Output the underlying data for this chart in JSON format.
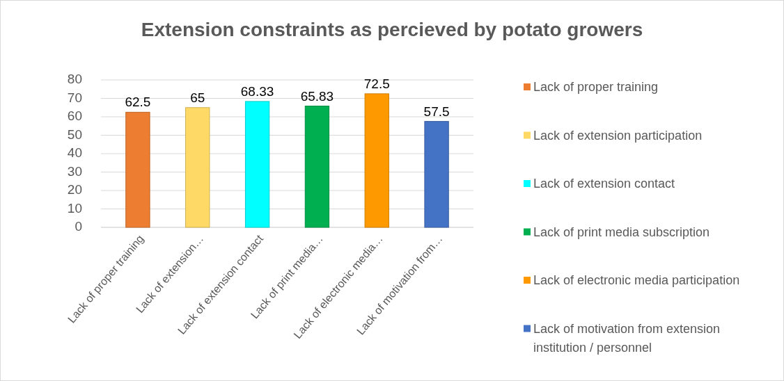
{
  "chart_data": {
    "type": "bar",
    "title": "Extension constraints as percieved by potato growers",
    "categories": [
      "Lack of proper training",
      "Lack of extension…",
      "Lack of extension contact",
      "Lack of print media…",
      "Lack of electronic media…",
      "Lack of motivation from…"
    ],
    "series": [
      {
        "name": "Lack of proper training",
        "color": "#ed7d31",
        "values": [
          62.5,
          null,
          null,
          null,
          null,
          null
        ]
      },
      {
        "name": "Lack of extension participation",
        "color": "#ffd966",
        "values": [
          null,
          65,
          null,
          null,
          null,
          null
        ]
      },
      {
        "name": "Lack of extension contact",
        "color": "#00ffff",
        "values": [
          null,
          null,
          68.33,
          null,
          null,
          null
        ]
      },
      {
        "name": "Lack of print media subscription",
        "color": "#00b050",
        "values": [
          null,
          null,
          null,
          65.83,
          null,
          null
        ]
      },
      {
        "name": "Lack of electronic media participation",
        "color": "#ff9900",
        "values": [
          null,
          null,
          null,
          null,
          72.5,
          null
        ]
      },
      {
        "name": "Lack of motivation from extension institution / personnel",
        "color": "#4472c4",
        "values": [
          null,
          null,
          null,
          null,
          null,
          57.5
        ]
      }
    ],
    "ylim": [
      0,
      80
    ],
    "yticks": [
      0,
      10,
      20,
      30,
      40,
      50,
      60,
      70,
      80
    ],
    "grid": "y",
    "legend": "right",
    "data_labels": true
  }
}
